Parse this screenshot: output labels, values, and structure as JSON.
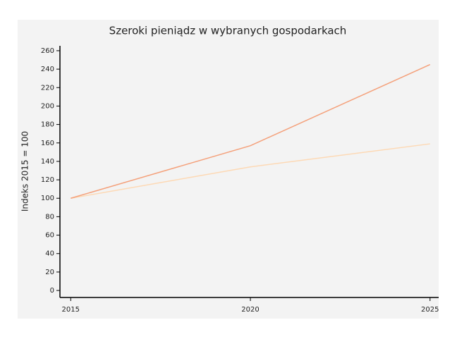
{
  "chart_data": {
    "type": "line",
    "title": "Szeroki pieniądz w wybranych gospodarkach",
    "y_label": "Indeks 2015 = 100",
    "x": [
      2015,
      2020,
      2025
    ],
    "series": [
      {
        "color": "#f4a07a",
        "values": [
          100,
          157,
          245
        ]
      },
      {
        "color": "#fdd9b5",
        "values": [
          100,
          134,
          159
        ]
      }
    ],
    "xlim": [
      2014.7,
      2025.24
    ],
    "xticks": [
      2015,
      2020,
      2025
    ],
    "ylim": [
      -7.6,
      265.3
    ],
    "yticks": [
      0,
      20,
      40,
      60,
      80,
      100,
      120,
      140,
      160,
      180,
      200,
      220,
      240,
      260
    ]
  }
}
